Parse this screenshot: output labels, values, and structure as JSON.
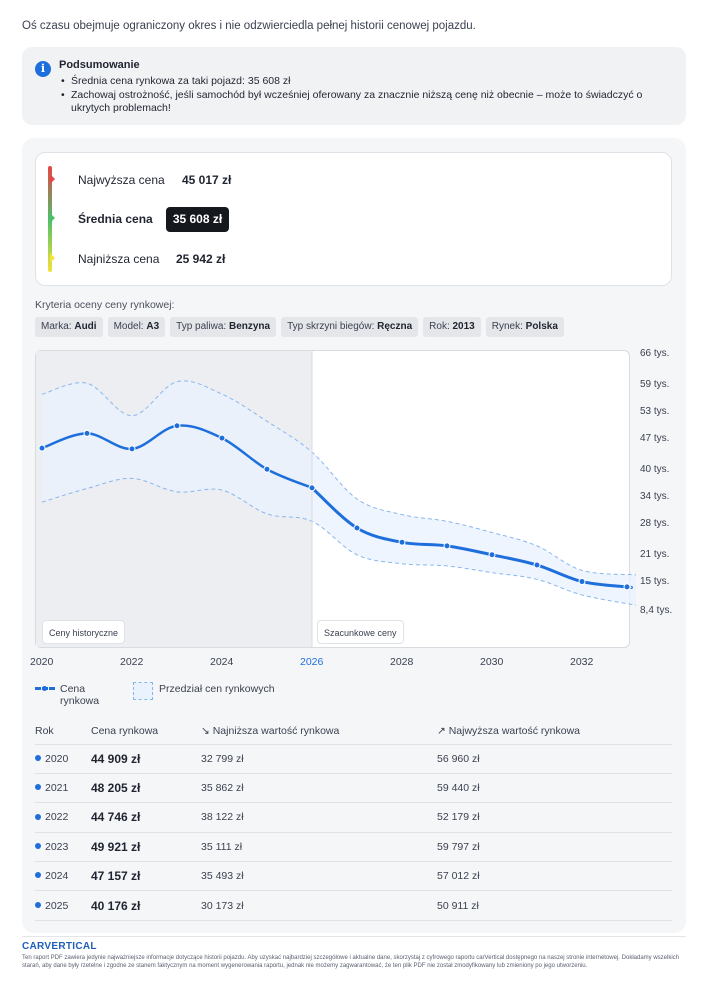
{
  "intro": "Oś czasu obejmuje ograniczony okres i nie odzwierciedla pełnej historii cenowej pojazdu.",
  "summary": {
    "title": "Podsumowanie",
    "icon": "info-icon",
    "items": [
      "Średnia cena rynkowa za taki pojazd: 35 608 zł",
      "Zachowaj ostrożność, jeśli samochód był wcześniej oferowany za znacznie niższą cenę niż obecnie – może to świadczyć o ukrytych problemach!"
    ]
  },
  "prices": {
    "highest_label": "Najwyższa cena",
    "highest_value": "45 017 zł",
    "average_label": "Średnia cena",
    "average_value": "35 608 zł",
    "lowest_label": "Najniższa cena",
    "lowest_value": "25 942 zł",
    "colors": {
      "high": "#e64646",
      "avg": "#4ebf6a",
      "low": "#f3e33a"
    }
  },
  "criteria": {
    "title": "Kryteria oceny ceny rynkowej:",
    "chips": [
      {
        "label": "Marka:",
        "value": "Audi"
      },
      {
        "label": "Model:",
        "value": "A3"
      },
      {
        "label": "Typ paliwa:",
        "value": "Benzyna"
      },
      {
        "label": "Typ skrzyni biegów:",
        "value": "Ręczna"
      },
      {
        "label": "Rok:",
        "value": "2013"
      },
      {
        "label": "Rynek:",
        "value": "Polska"
      }
    ]
  },
  "chart_data": {
    "type": "line",
    "x_ticks": [
      "2020",
      "2022",
      "2024",
      "2026",
      "2028",
      "2030",
      "2032"
    ],
    "current_x_tick": "2026",
    "y_ticks": [
      "66 tys.",
      "59 tys.",
      "53 tys.",
      "47 tys.",
      "40 tys.",
      "34 tys.",
      "28 tys.",
      "21 tys.",
      "15 tys.",
      "8,4 tys."
    ],
    "y_tick_values": [
      66000,
      59000,
      53000,
      47000,
      40000,
      34000,
      28000,
      21000,
      15000,
      8400
    ],
    "ylim": [
      7000,
      68000
    ],
    "xlim": [
      2020,
      2033.2
    ],
    "series": [
      {
        "name": "Cena rynkowa",
        "x": [
          2020,
          2021,
          2022,
          2023,
          2024,
          2025,
          2026,
          2027,
          2028,
          2029,
          2030,
          2031,
          2032,
          2033
        ],
        "y": [
          44909,
          48205,
          44746,
          49921,
          47157,
          40176,
          36000,
          27000,
          23800,
          23000,
          21000,
          18700,
          15000,
          13800
        ]
      }
    ],
    "band": {
      "name": "Przedział cen rynkowych",
      "x": [
        2020,
        2021,
        2022,
        2023,
        2024,
        2025,
        2026,
        2027,
        2028,
        2029,
        2030,
        2031,
        2032,
        2033.2
      ],
      "low": [
        32799,
        35862,
        38122,
        35111,
        35493,
        30173,
        28500,
        21000,
        19000,
        18500,
        17000,
        15500,
        12000,
        9700
      ],
      "high": [
        56960,
        59440,
        52179,
        59797,
        57012,
        50911,
        44000,
        33500,
        30000,
        28500,
        26000,
        23000,
        17500,
        16500
      ]
    },
    "regions": [
      "Ceny historyczne",
      "Szacunkowe ceny"
    ],
    "colors": {
      "line": "#1e6fdc",
      "band": "#e9f2fd",
      "band_edge": "#8ab6ee",
      "history": "#eceef1"
    }
  },
  "legend": {
    "line": "Cena rynkowa",
    "band": "Przedział cen rynkowych"
  },
  "table": {
    "headers": [
      "Rok",
      "Cena rynkowa",
      "Najniższa wartość rynkowa",
      "Najwyższa wartość rynkowa"
    ],
    "rows": [
      {
        "year": "2020",
        "price": "44 909 zł",
        "low": "32 799 zł",
        "high": "56 960 zł"
      },
      {
        "year": "2021",
        "price": "48 205 zł",
        "low": "35 862 zł",
        "high": "59 440 zł"
      },
      {
        "year": "2022",
        "price": "44 746 zł",
        "low": "38 122 zł",
        "high": "52 179 zł"
      },
      {
        "year": "2023",
        "price": "49 921 zł",
        "low": "35 111 zł",
        "high": "59 797 zł"
      },
      {
        "year": "2024",
        "price": "47 157 zł",
        "low": "35 493 zł",
        "high": "57 012 zł"
      },
      {
        "year": "2025",
        "price": "40 176 zł",
        "low": "30 173 zł",
        "high": "50 911 zł"
      }
    ]
  },
  "footer": {
    "logo": "CARVERTICAL",
    "text": "Ten raport PDF zawiera jedynie najważniejsze informacje dotyczące historii pojazdu. Aby uzyskać najbardziej szczegółowe i aktualne dane, skorzystaj z cyfrowego raportu carVertical dostępnego na naszej stronie internetowej. Dokładamy wszelkich starań, aby dane były rzetelne i zgodne ze stanem faktycznym na moment wygenerowania raportu, jednak nie możemy zagwarantować, że ten plik PDF nie został zmodyfikowany lub zmieniony po jego utworzeniu."
  }
}
